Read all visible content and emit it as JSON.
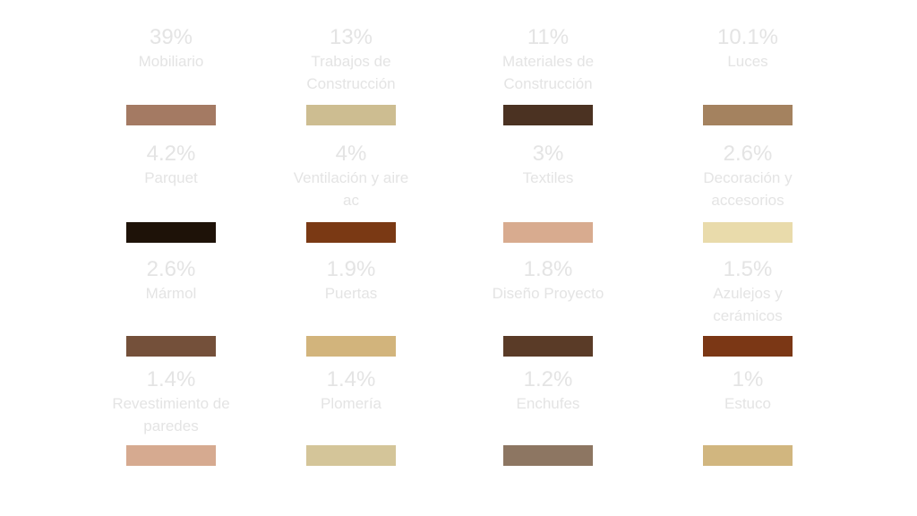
{
  "items": [
    {
      "value": "39%",
      "label": "Mobiliario",
      "color": "#a47a63"
    },
    {
      "value": "13%",
      "label": "Trabajos de Construcción",
      "color": "#cdbd91"
    },
    {
      "value": "11%",
      "label": "Materiales de Construcción",
      "color": "#4b3222"
    },
    {
      "value": "10.1%",
      "label": "Luces",
      "color": "#a4825f"
    },
    {
      "value": "4.2%",
      "label": "Parquet",
      "color": "#1e1208"
    },
    {
      "value": "4%",
      "label": "Ventilación y aire ac",
      "color": "#7a3914"
    },
    {
      "value": "3%",
      "label": "Textiles",
      "color": "#d8ab8f"
    },
    {
      "value": "2.6%",
      "label": "Decoración y accesorios",
      "color": "#e9dbab"
    },
    {
      "value": "2.6%",
      "label": "Mármol",
      "color": "#74503a"
    },
    {
      "value": "1.9%",
      "label": "Puertas",
      "color": "#d2b47c"
    },
    {
      "value": "1.8%",
      "label": "Diseño Proyecto",
      "color": "#5a3b27"
    },
    {
      "value": "1.5%",
      "label": "Azulejos y cerámicos",
      "color": "#7b3715"
    },
    {
      "value": "1.4%",
      "label": "Revestimiento de paredes",
      "color": "#d6aa90"
    },
    {
      "value": "1.4%",
      "label": "Plomería",
      "color": "#d4c599"
    },
    {
      "value": "1.2%",
      "label": "Enchufes",
      "color": "#8d7662"
    },
    {
      "value": "1%",
      "label": "Estuco",
      "color": "#d1b67f"
    }
  ]
}
